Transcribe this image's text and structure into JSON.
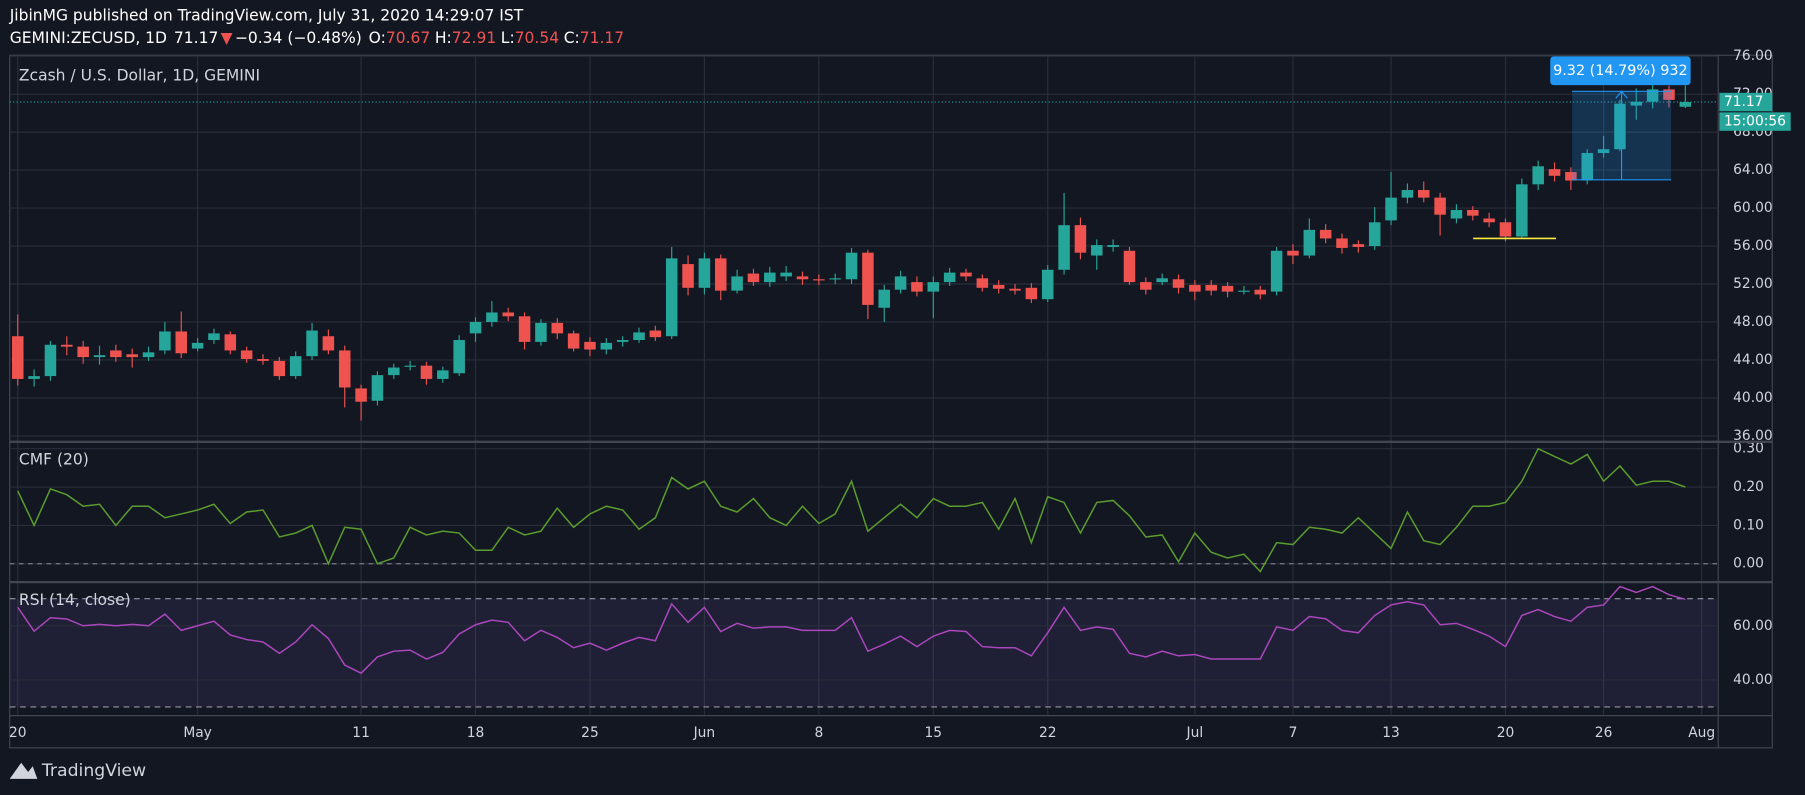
{
  "header": {
    "publisher": "JibinMG published on TradingView.com, July 31, 2020 14:29:07 IST",
    "symbol": "GEMINI:ZECUSD, 1D",
    "direction": "▼",
    "change": "−0.34 (−0.48%)",
    "ohlc_labels": [
      "O:",
      "H:",
      "L:",
      "C:"
    ]
  },
  "footer": {
    "brand": "TradingView"
  },
  "chart_data": [
    {
      "type": "candlestick",
      "title": "Zcash / U.S. Dollar, 1D, GEMINI",
      "up_color": "#26a69a",
      "down_color": "#ef5350",
      "categories": [
        "20",
        null,
        null,
        null,
        null,
        null,
        null,
        null,
        null,
        null,
        null,
        "May",
        null,
        null,
        null,
        null,
        null,
        null,
        null,
        null,
        null,
        "11",
        null,
        null,
        null,
        null,
        null,
        null,
        "18",
        null,
        null,
        null,
        null,
        null,
        null,
        "25",
        null,
        null,
        null,
        null,
        null,
        null,
        "Jun",
        null,
        null,
        null,
        null,
        null,
        null,
        "8",
        null,
        null,
        null,
        null,
        null,
        null,
        "15",
        null,
        null,
        null,
        null,
        null,
        null,
        "22",
        null,
        null,
        null,
        null,
        null,
        null,
        null,
        null,
        "Jul",
        null,
        null,
        null,
        null,
        null,
        "7",
        null,
        null,
        null,
        null,
        null,
        "13",
        null,
        null,
        null,
        null,
        null,
        null,
        "20",
        null,
        null,
        null,
        null,
        null,
        "26",
        null,
        null,
        null,
        null,
        null,
        "Aug"
      ],
      "open": [
        46.5,
        42.0,
        42.3,
        45.6,
        45.4,
        44.3,
        45.0,
        44.6,
        44.3,
        45.0,
        47.0,
        45.2,
        46.1,
        46.7,
        45.0,
        44.1,
        43.9,
        42.3,
        44.4,
        46.5,
        45.0,
        41.0,
        39.7,
        42.4,
        43.3,
        43.4,
        42.0,
        42.6,
        46.8,
        48.0,
        49.0,
        48.6,
        45.9,
        47.9,
        46.8,
        45.9,
        45.1,
        45.9,
        46.1,
        47.1,
        46.5,
        54.1,
        51.6,
        54.7,
        51.3,
        53.1,
        52.2,
        52.8,
        52.8,
        52.5,
        52.5,
        52.5,
        55.3,
        49.5,
        51.4,
        52.2,
        51.2,
        52.2,
        53.2,
        52.6,
        51.9,
        51.5,
        51.6,
        50.4,
        53.5,
        58.2,
        55.0,
        55.9,
        55.5,
        52.2,
        52.2,
        52.5,
        51.9,
        51.9,
        51.8,
        51.2,
        51.4,
        51.2,
        55.5,
        55.0,
        57.7,
        56.8,
        56.2,
        56.0,
        58.7,
        61.1,
        61.9,
        61.1,
        58.9,
        59.8,
        58.9,
        58.5,
        57.0,
        62.5,
        64.1,
        63.8,
        62.9,
        65.8,
        66.2,
        70.8,
        71.2,
        72.5,
        70.67,
        null
      ],
      "high": [
        48.8,
        43.0,
        46.0,
        46.5,
        46.0,
        45.5,
        45.6,
        45.2,
        45.4,
        48.0,
        49.1,
        46.3,
        47.3,
        47.0,
        45.4,
        44.6,
        44.3,
        44.9,
        47.9,
        47.2,
        45.5,
        41.4,
        42.8,
        43.6,
        43.9,
        43.8,
        43.3,
        46.6,
        48.5,
        50.2,
        49.5,
        49.0,
        48.3,
        48.4,
        47.1,
        46.4,
        46.3,
        46.5,
        47.4,
        47.6,
        55.9,
        55.0,
        55.3,
        55.1,
        53.5,
        53.6,
        53.8,
        53.9,
        53.3,
        53.0,
        53.1,
        55.8,
        55.6,
        51.9,
        53.4,
        52.8,
        52.8,
        53.7,
        53.6,
        53.0,
        52.4,
        52.0,
        52.1,
        54.0,
        61.6,
        59.0,
        56.7,
        56.7,
        55.9,
        52.7,
        53.1,
        53.0,
        52.4,
        52.4,
        52.2,
        51.8,
        51.8,
        55.9,
        56.2,
        58.9,
        58.3,
        57.3,
        56.6,
        60.1,
        63.8,
        62.6,
        62.8,
        61.6,
        60.4,
        60.2,
        59.5,
        58.9,
        63.1,
        65.0,
        64.8,
        64.3,
        66.2,
        67.6,
        71.4,
        72.6,
        73.7,
        72.9,
        72.91,
        null
      ],
      "low": [
        41.3,
        41.2,
        41.8,
        44.5,
        43.6,
        43.5,
        43.8,
        43.2,
        43.9,
        44.6,
        44.2,
        44.9,
        45.7,
        44.6,
        43.7,
        43.5,
        41.9,
        42.0,
        44.0,
        44.6,
        39.0,
        37.6,
        39.2,
        42.0,
        42.9,
        41.4,
        41.6,
        42.3,
        45.9,
        47.5,
        48.1,
        45.1,
        45.5,
        46.2,
        44.9,
        44.4,
        44.6,
        45.4,
        45.8,
        46.0,
        46.2,
        50.8,
        50.9,
        50.3,
        51.0,
        51.8,
        51.7,
        52.3,
        51.9,
        51.9,
        52.0,
        52.0,
        48.3,
        48.0,
        51.0,
        50.7,
        48.4,
        51.8,
        52.3,
        51.2,
        51.0,
        50.9,
        50.0,
        50.1,
        53.0,
        54.6,
        53.5,
        55.4,
        51.9,
        50.9,
        51.9,
        51.0,
        50.3,
        50.8,
        50.6,
        50.9,
        50.4,
        50.8,
        54.1,
        54.7,
        56.3,
        55.2,
        55.3,
        55.6,
        58.2,
        60.5,
        60.6,
        57.1,
        58.4,
        58.7,
        58.0,
        56.5,
        56.8,
        61.9,
        62.8,
        61.9,
        62.5,
        65.3,
        66.0,
        69.3,
        70.5,
        70.6,
        70.54,
        null
      ],
      "close": [
        42.0,
        42.3,
        45.6,
        45.4,
        44.3,
        44.5,
        44.3,
        44.3,
        44.8,
        47.0,
        44.7,
        45.8,
        46.8,
        45.0,
        44.1,
        43.9,
        42.3,
        44.4,
        47.1,
        45.0,
        41.1,
        39.6,
        42.4,
        43.2,
        43.4,
        42.0,
        42.9,
        46.1,
        48.0,
        49.0,
        48.6,
        45.9,
        47.9,
        46.8,
        45.2,
        45.1,
        45.8,
        46.1,
        46.9,
        46.4,
        54.7,
        51.6,
        54.7,
        51.3,
        52.8,
        52.2,
        53.2,
        53.2,
        52.5,
        52.4,
        52.6,
        55.3,
        49.8,
        51.4,
        52.8,
        51.2,
        52.2,
        53.2,
        52.8,
        51.6,
        51.5,
        51.3,
        50.4,
        53.5,
        58.2,
        55.3,
        56.1,
        56.1,
        52.2,
        51.4,
        52.6,
        51.6,
        51.2,
        51.3,
        51.2,
        51.3,
        50.9,
        55.5,
        55.0,
        57.7,
        56.8,
        55.8,
        55.9,
        58.5,
        61.1,
        61.9,
        61.1,
        59.3,
        59.8,
        59.2,
        58.5,
        57.0,
        62.5,
        64.4,
        63.4,
        62.9,
        65.8,
        66.2,
        71.0,
        71.2,
        72.5,
        71.4,
        71.17,
        null
      ],
      "ylim": [
        35.5,
        76.1
      ],
      "yticks": [
        {
          "value": 36,
          "label": "36.00"
        },
        {
          "value": 40,
          "label": "40.00"
        },
        {
          "value": 44,
          "label": "44.00"
        },
        {
          "value": 48,
          "label": "48.00"
        },
        {
          "value": 52,
          "label": "52.00"
        },
        {
          "value": 56,
          "label": "56.00"
        },
        {
          "value": 60,
          "label": "60.00"
        },
        {
          "value": 64,
          "label": "64.00"
        },
        {
          "value": 68,
          "label": "68.00"
        },
        {
          "value": 72,
          "label": "72.00"
        },
        {
          "value": 76,
          "label": "76.00"
        }
      ],
      "grid": true,
      "countdown": "15:00:56",
      "measure": {
        "label": "9.32 (14.79%) 932",
        "low": 62.98,
        "high": 72.3,
        "color": "#2196f3"
      },
      "support": {
        "value": 56.8,
        "color": "#ffeb3b"
      }
    },
    {
      "type": "line",
      "title": "CMF (20)",
      "color": "#5b9c2e",
      "values": [
        0.19,
        0.1,
        0.195,
        0.18,
        0.15,
        0.155,
        0.1,
        0.15,
        0.15,
        0.12,
        0.13,
        0.14,
        0.155,
        0.105,
        0.135,
        0.14,
        0.07,
        0.08,
        0.1,
        0.0,
        0.095,
        0.09,
        0.0,
        0.015,
        0.095,
        0.075,
        0.085,
        0.08,
        0.035,
        0.035,
        0.095,
        0.075,
        0.085,
        0.145,
        0.095,
        0.13,
        0.15,
        0.14,
        0.09,
        0.12,
        0.225,
        0.195,
        0.215,
        0.15,
        0.135,
        0.17,
        0.12,
        0.1,
        0.15,
        0.105,
        0.13,
        0.215,
        0.085,
        0.12,
        0.155,
        0.12,
        0.17,
        0.15,
        0.15,
        0.16,
        0.09,
        0.17,
        0.055,
        0.175,
        0.16,
        0.08,
        0.16,
        0.165,
        0.125,
        0.07,
        0.075,
        0.005,
        0.08,
        0.03,
        0.015,
        0.025,
        -0.02,
        0.055,
        0.05,
        0.095,
        0.09,
        0.08,
        0.12,
        0.08,
        0.04,
        0.135,
        0.06,
        0.05,
        0.095,
        0.15,
        0.15,
        0.16,
        0.215,
        0.3,
        0.28,
        0.26,
        0.285,
        0.215,
        0.255,
        0.205,
        0.215,
        0.215,
        0.2,
        null
      ],
      "ylim": [
        -0.045,
        0.315
      ],
      "yticks": [
        {
          "value": 0,
          "label": "0.00"
        },
        {
          "value": 0.1,
          "label": "0.10"
        },
        {
          "value": 0.2,
          "label": "0.20"
        },
        {
          "value": 0.3,
          "label": "0.30"
        }
      ],
      "grid": true,
      "baseline": 0
    },
    {
      "type": "line",
      "title": "RSI (14, close)",
      "color": "#ab47bc",
      "values": [
        66.8,
        58.0,
        63.0,
        62.5,
        60.0,
        60.5,
        60.0,
        60.5,
        60.0,
        64.3,
        58.3,
        60.0,
        61.7,
        56.6,
        54.9,
        54.0,
        49.8,
        54.0,
        60.4,
        55.3,
        45.5,
        42.5,
        48.5,
        50.6,
        51.0,
        47.7,
        50.2,
        57.0,
        60.4,
        62.1,
        61.3,
        54.5,
        58.3,
        55.7,
        51.9,
        53.6,
        51.0,
        53.6,
        55.7,
        54.5,
        68.1,
        61.3,
        66.8,
        57.9,
        60.9,
        59.1,
        59.6,
        59.6,
        58.3,
        58.3,
        58.3,
        63.0,
        50.6,
        53.2,
        56.2,
        52.3,
        56.2,
        58.3,
        57.9,
        52.3,
        51.9,
        51.9,
        48.9,
        57.4,
        66.8,
        58.3,
        59.6,
        58.7,
        49.8,
        48.5,
        50.6,
        48.9,
        49.4,
        47.7,
        47.7,
        47.7,
        47.7,
        59.6,
        58.3,
        63.4,
        62.6,
        58.3,
        57.4,
        63.8,
        67.7,
        68.9,
        67.7,
        60.4,
        60.9,
        58.7,
        56.2,
        52.3,
        63.8,
        66.0,
        63.4,
        61.7,
        66.8,
        67.7,
        74.5,
        72.3,
        74.5,
        71.5,
        69.8,
        null
      ],
      "ylim": [
        26.8,
        75.7
      ],
      "yticks": [
        {
          "value": 40,
          "label": "40.00"
        },
        {
          "value": 60,
          "label": "60.00"
        }
      ],
      "grid": true,
      "band": [
        30,
        70
      ],
      "band_color": "#7e57c2"
    }
  ]
}
